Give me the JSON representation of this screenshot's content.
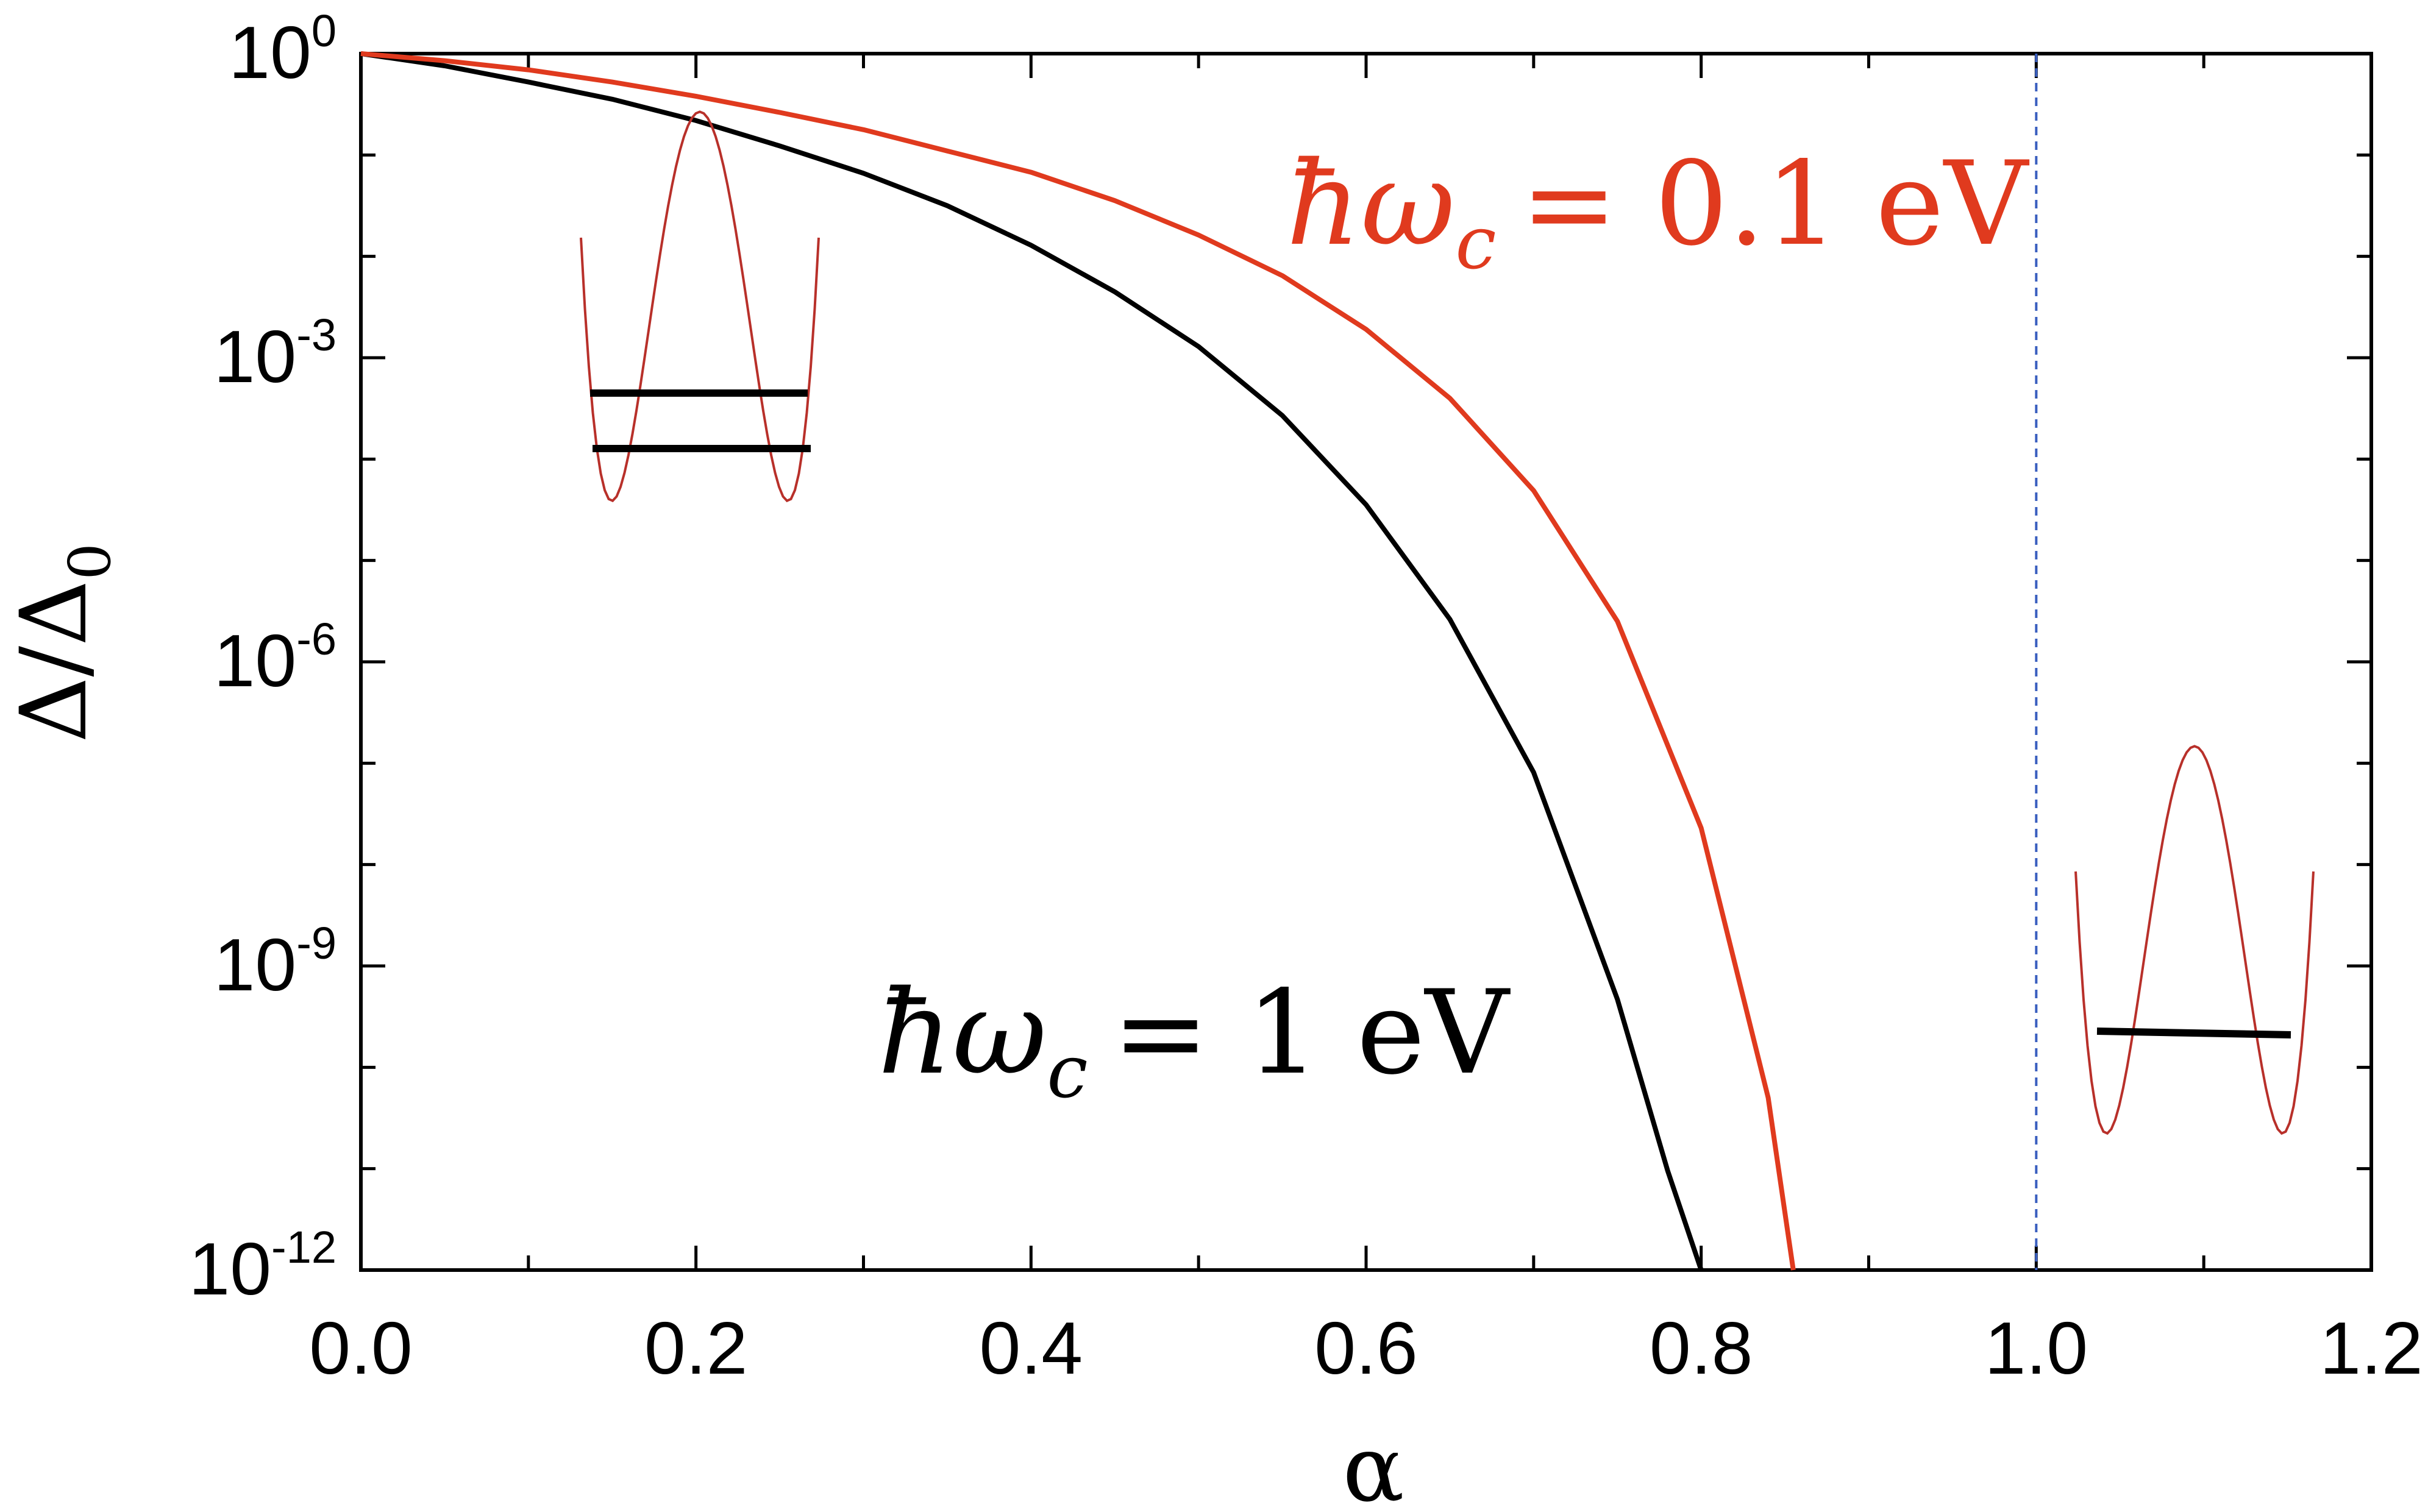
{
  "chart_data": {
    "type": "line",
    "title": "",
    "xlabel": "α",
    "ylabel": "Δ/Δ",
    "ylabel_subscript": "0",
    "xscale": "linear",
    "yscale": "log",
    "xlim": [
      0.0,
      1.2
    ],
    "ylim": [
      1e-12,
      1
    ],
    "x_ticks": [
      "0.0",
      "0.2",
      "0.4",
      "0.6",
      "0.8",
      "1.0",
      "1.2"
    ],
    "y_ticks": [
      {
        "base": "10",
        "exp": "0",
        "value": 1
      },
      {
        "base": "10",
        "exp": "-3",
        "value": 0.001
      },
      {
        "base": "10",
        "exp": "-6",
        "value": 1e-06
      },
      {
        "base": "10",
        "exp": "-9",
        "value": 1e-09
      },
      {
        "base": "10",
        "exp": "-12",
        "value": 1e-12
      }
    ],
    "grid": false,
    "vertical_line": {
      "x": 1.0,
      "style": "dashed",
      "color": "#3a5fbf"
    },
    "series": [
      {
        "name": "ħω_c = 1 eV",
        "color": "#000000",
        "x": [
          0.0,
          0.05,
          0.1,
          0.15,
          0.2,
          0.25,
          0.3,
          0.35,
          0.4,
          0.45,
          0.5,
          0.55,
          0.6,
          0.65,
          0.7,
          0.75,
          0.78,
          0.8
        ],
        "log10_y": [
          0,
          -0.12,
          -0.28,
          -0.45,
          -0.66,
          -0.91,
          -1.18,
          -1.5,
          -1.89,
          -2.35,
          -2.89,
          -3.57,
          -4.45,
          -5.58,
          -7.09,
          -9.33,
          -11.02,
          -12.0
        ]
      },
      {
        "name": "ħω_c = 0.1 eV",
        "color": "#e03a1e",
        "x": [
          0.0,
          0.05,
          0.1,
          0.15,
          0.2,
          0.25,
          0.3,
          0.35,
          0.4,
          0.45,
          0.5,
          0.55,
          0.6,
          0.65,
          0.7,
          0.75,
          0.8,
          0.84,
          0.855
        ],
        "log10_y": [
          0,
          -0.07,
          -0.16,
          -0.28,
          -0.42,
          -0.58,
          -0.75,
          -0.96,
          -1.17,
          -1.45,
          -1.79,
          -2.19,
          -2.72,
          -3.4,
          -4.31,
          -5.6,
          -7.64,
          -10.3,
          -12.0
        ]
      }
    ],
    "annotations": [
      {
        "main": "ħω",
        "sub": "c",
        "rest": "= 0.1 eV",
        "color": "#e03a1e"
      },
      {
        "main": "ħω",
        "sub": "c",
        "rest": "= 1 eV",
        "color": "#000000"
      }
    ],
    "insets": [
      {
        "name": "double-well-two-levels",
        "levels": 2,
        "well_color": "#b8302a"
      },
      {
        "name": "double-well-one-level",
        "levels": 1,
        "well_color": "#b8302a"
      }
    ]
  }
}
